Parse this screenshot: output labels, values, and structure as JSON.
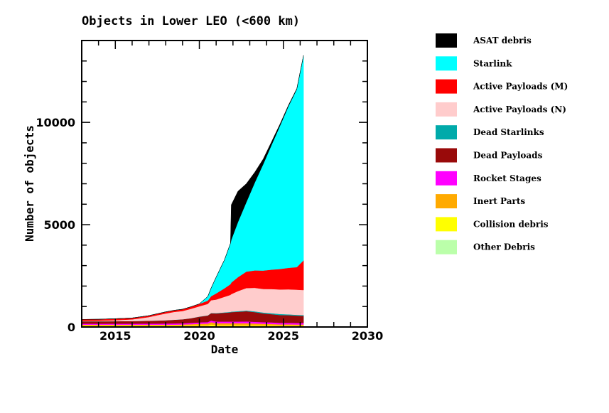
{
  "chart_data": {
    "type": "area",
    "title": "Objects in Lower LEO (<600 km)",
    "xlabel": "Date",
    "ylabel": "Number of objects",
    "xlim": [
      2013.0,
      2030.0
    ],
    "ylim": [
      0,
      14000
    ],
    "xticks_major": [
      2015,
      2020,
      2025,
      2030
    ],
    "xtick_labels": [
      "2015",
      "2020",
      "2025",
      "2030"
    ],
    "xticks_minor_step": 1,
    "yticks_major": [
      0,
      5000,
      10000
    ],
    "ytick_labels": [
      "0",
      "5000",
      "10000"
    ],
    "yticks_minor_step": 1000,
    "grid": false,
    "stacked": true,
    "legend_position": "right",
    "x": [
      2013.0,
      2014.0,
      2015.0,
      2016.0,
      2017.0,
      2017.5,
      2018.0,
      2018.5,
      2019.0,
      2019.5,
      2020.0,
      2020.5,
      2020.7,
      2021.0,
      2021.5,
      2021.85,
      2021.9,
      2022.3,
      2022.8,
      2023.3,
      2023.8,
      2024.3,
      2024.8,
      2025.3,
      2025.8,
      2026.2
    ],
    "series": [
      {
        "name": "Other Debris",
        "color": "#bbffaa",
        "values": [
          40,
          40,
          40,
          40,
          40,
          40,
          40,
          40,
          40,
          45,
          45,
          45,
          45,
          45,
          45,
          45,
          45,
          45,
          45,
          45,
          45,
          45,
          45,
          45,
          45,
          45
        ]
      },
      {
        "name": "Collision debris",
        "color": "#ffff00",
        "values": [
          30,
          30,
          30,
          30,
          30,
          30,
          30,
          30,
          30,
          30,
          30,
          30,
          80,
          40,
          40,
          40,
          40,
          40,
          40,
          35,
          30,
          30,
          25,
          25,
          20,
          20
        ]
      },
      {
        "name": "Inert Parts",
        "color": "#ffaa00",
        "values": [
          40,
          40,
          40,
          40,
          40,
          40,
          40,
          45,
          50,
          60,
          80,
          90,
          110,
          100,
          100,
          100,
          100,
          100,
          100,
          90,
          80,
          70,
          60,
          60,
          55,
          55
        ]
      },
      {
        "name": "Rocket Stages",
        "color": "#ff00ff",
        "values": [
          50,
          50,
          50,
          50,
          55,
          55,
          60,
          60,
          60,
          65,
          70,
          75,
          80,
          80,
          80,
          80,
          80,
          80,
          85,
          85,
          80,
          80,
          75,
          75,
          75,
          75
        ]
      },
      {
        "name": "Dead Payloads",
        "color": "#990a0a",
        "values": [
          120,
          120,
          125,
          130,
          140,
          150,
          160,
          180,
          200,
          230,
          280,
          320,
          360,
          400,
          430,
          450,
          460,
          480,
          500,
          470,
          430,
          400,
          380,
          370,
          360,
          350
        ]
      },
      {
        "name": "Dead Starlinks",
        "color": "#00aaaa",
        "values": [
          0,
          0,
          0,
          0,
          0,
          0,
          0,
          0,
          0,
          0,
          5,
          10,
          10,
          15,
          20,
          25,
          25,
          30,
          35,
          40,
          45,
          50,
          50,
          45,
          40,
          40
        ]
      },
      {
        "name": "Active Payloads (N)",
        "color": "#ffcccc",
        "values": [
          20,
          30,
          50,
          80,
          180,
          260,
          330,
          380,
          400,
          460,
          500,
          560,
          620,
          660,
          760,
          830,
          860,
          980,
          1100,
          1150,
          1150,
          1180,
          1200,
          1220,
          1230,
          1220
        ]
      },
      {
        "name": "Active Payloads (M)",
        "color": "#ff0000",
        "values": [
          70,
          70,
          70,
          70,
          70,
          75,
          80,
          80,
          90,
          100,
          120,
          160,
          200,
          300,
          420,
          520,
          560,
          680,
          800,
          850,
          900,
          950,
          1000,
          1050,
          1100,
          1450
        ]
      },
      {
        "name": "Starlink",
        "color": "#00ffff",
        "values": [
          0,
          0,
          0,
          0,
          0,
          0,
          0,
          0,
          0,
          0,
          0,
          200,
          400,
          800,
          1400,
          2000,
          2100,
          2700,
          3400,
          4300,
          5200,
          6100,
          7000,
          7900,
          8700,
          10000
        ]
      },
      {
        "name": "ASAT debris",
        "color": "#000000",
        "values": [
          0,
          0,
          0,
          0,
          0,
          0,
          0,
          0,
          0,
          0,
          0,
          0,
          0,
          0,
          0,
          0,
          1700,
          1500,
          900,
          500,
          250,
          150,
          80,
          50,
          30,
          20
        ]
      }
    ]
  },
  "legend": {
    "items": [
      {
        "label": "ASAT debris",
        "color": "#000000"
      },
      {
        "label": "Starlink",
        "color": "#00ffff"
      },
      {
        "label": "Active Payloads (M)",
        "color": "#ff0000"
      },
      {
        "label": "Active Payloads (N)",
        "color": "#ffcccc"
      },
      {
        "label": "Dead Starlinks",
        "color": "#00aaaa"
      },
      {
        "label": "Dead Payloads",
        "color": "#990a0a"
      },
      {
        "label": "Rocket Stages",
        "color": "#ff00ff"
      },
      {
        "label": "Inert Parts",
        "color": "#ffaa00"
      },
      {
        "label": "Collision debris",
        "color": "#ffff00"
      },
      {
        "label": "Other Debris",
        "color": "#bbffaa"
      }
    ]
  }
}
